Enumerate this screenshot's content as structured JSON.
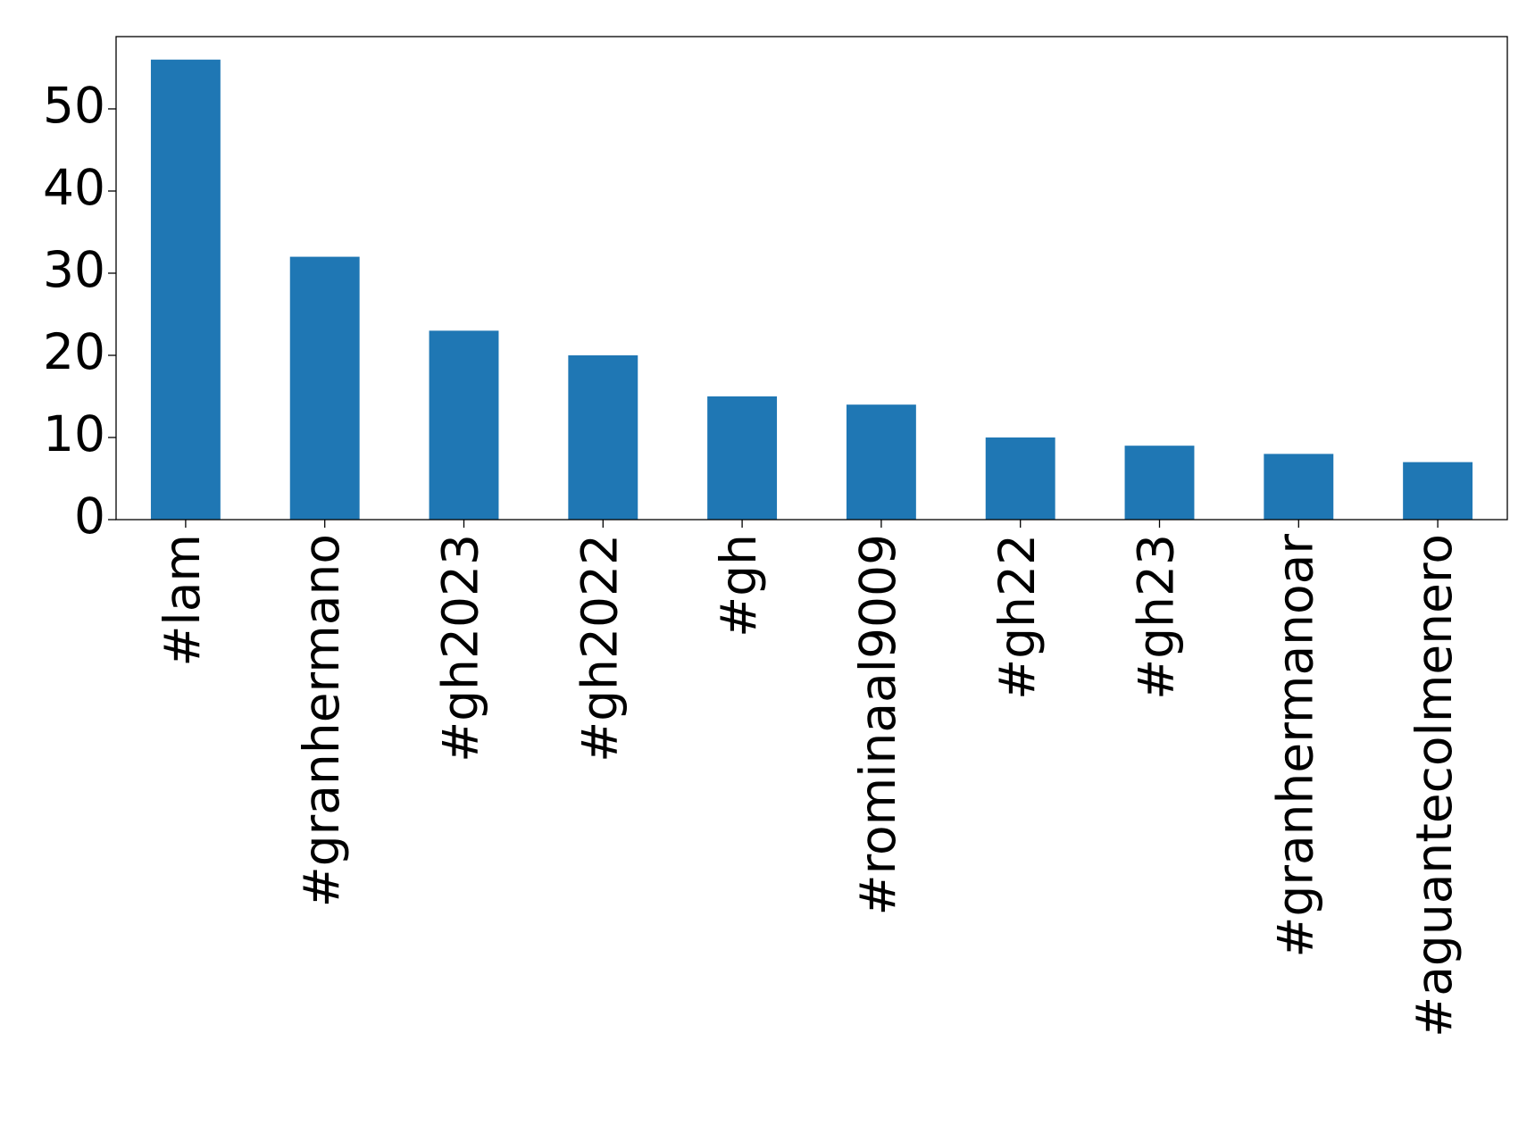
{
  "chart_data": {
    "type": "bar",
    "categories": [
      "#lam",
      "#granhermano",
      "#gh2023",
      "#gh2022",
      "#gh",
      "#rominaal9009",
      "#gh22",
      "#gh23",
      "#granhermanoar",
      "#aguantecolmenero"
    ],
    "values": [
      56,
      32,
      23,
      20,
      15,
      14,
      10,
      9,
      8,
      7
    ],
    "color": "#1f77b4",
    "ylim": [
      0,
      58.8
    ],
    "yticks": [
      0,
      10,
      20,
      30,
      40,
      50
    ],
    "grid": false
  }
}
